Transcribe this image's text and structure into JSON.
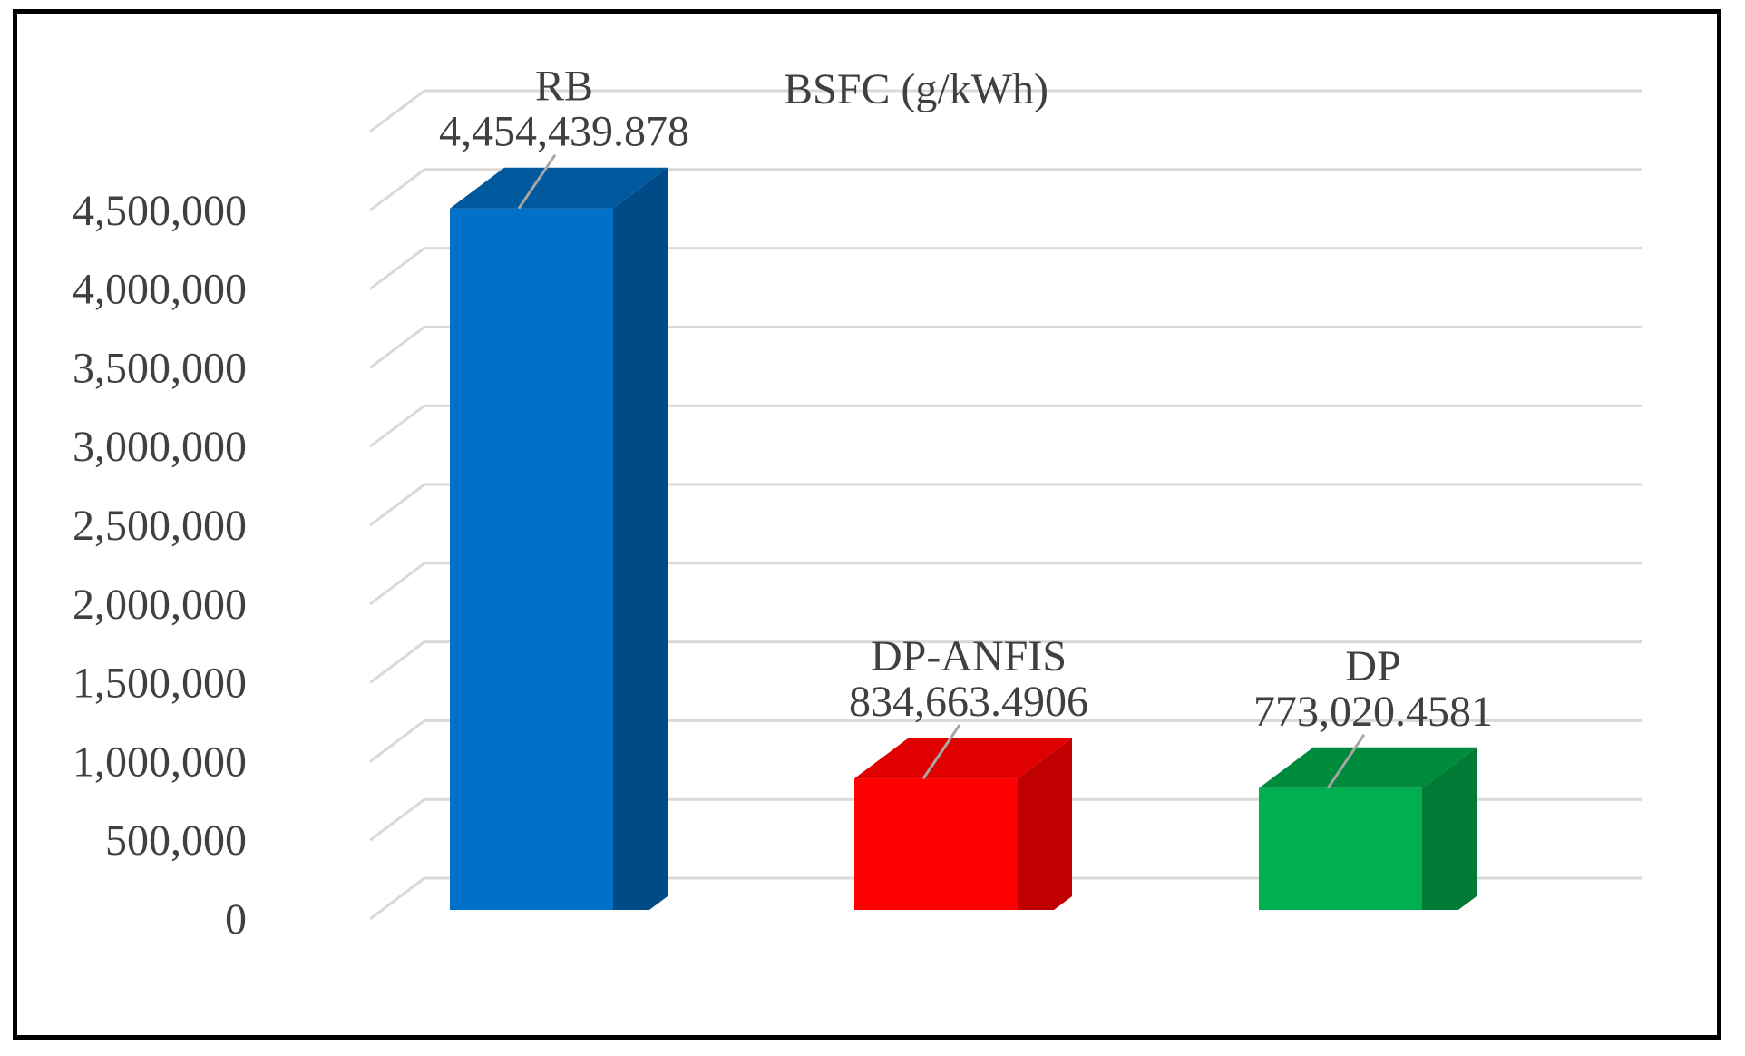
{
  "chart_data": {
    "type": "bar",
    "title": "BSFC (g/kWh)",
    "categories": [
      "RB",
      "DP-ANFIS",
      "DP"
    ],
    "values": [
      4454439.878,
      834663.4906,
      773020.4581
    ],
    "value_labels": [
      "4,454,439.878",
      "834,663.4906",
      "773,020.4581"
    ],
    "ylim": [
      0,
      4500000
    ],
    "yticks": [
      0,
      500000,
      1000000,
      1500000,
      2000000,
      2500000,
      3000000,
      3500000,
      4000000,
      4500000
    ],
    "ytick_labels": [
      "0",
      "500,000",
      "1,000,000",
      "1,500,000",
      "2,000,000",
      "2,500,000",
      "3,000,000",
      "3,500,000",
      "4,000,000",
      "4,500,000"
    ],
    "grid": true,
    "legend": "none",
    "style": "3d-column",
    "colors": {
      "RB": {
        "front": "#0070C8",
        "side": "#004A87",
        "top": "#00599D"
      },
      "DP-ANFIS": {
        "front": "#FF0000",
        "side": "#C00000",
        "top": "#E00000"
      },
      "DP": {
        "front": "#00B050",
        "side": "#007A35",
        "top": "#008A3C"
      }
    }
  }
}
